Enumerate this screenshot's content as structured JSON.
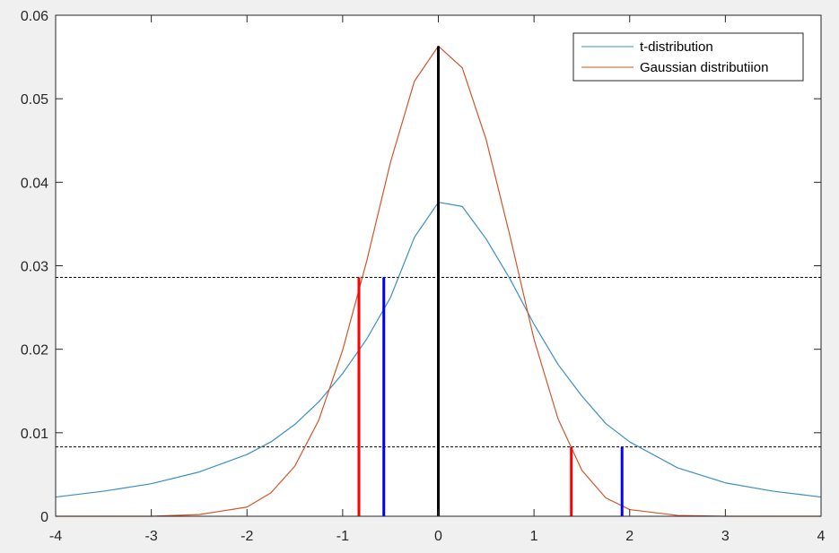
{
  "chart_data": {
    "type": "line",
    "title": "",
    "xlabel": "",
    "ylabel": "",
    "xlim": [
      -4,
      4
    ],
    "ylim": [
      0,
      0.06
    ],
    "x_ticks": [
      -4,
      -3,
      -2,
      -1,
      0,
      1,
      2,
      3,
      4
    ],
    "x_tick_labels": [
      "-4",
      "-3",
      "-2",
      "-1",
      "0",
      "1",
      "2",
      "3",
      "4"
    ],
    "y_ticks": [
      0,
      0.01,
      0.02,
      0.03,
      0.04,
      0.05,
      0.06
    ],
    "y_tick_labels": [
      "0",
      "0.01",
      "0.02",
      "0.03",
      "0.04",
      "0.05",
      "0.06"
    ],
    "grid": false,
    "legend_position": "top-right",
    "series": [
      {
        "name": "t-distribution",
        "color": "#3b8fc4",
        "x": [
          -4,
          -3.5,
          -3,
          -2.5,
          -2,
          -1.75,
          -1.5,
          -1.25,
          -1,
          -0.75,
          -0.5,
          -0.25,
          0,
          0.25,
          0.5,
          0.75,
          1,
          1.25,
          1.5,
          1.75,
          2,
          2.5,
          3,
          3.5,
          4
        ],
        "y": [
          0.0023,
          0.003,
          0.0039,
          0.0053,
          0.0074,
          0.0089,
          0.011,
          0.0137,
          0.0171,
          0.0212,
          0.0262,
          0.0334,
          0.0376,
          0.0371,
          0.0332,
          0.0284,
          0.023,
          0.0182,
          0.0144,
          0.0111,
          0.0089,
          0.0058,
          0.004,
          0.003,
          0.0023
        ]
      },
      {
        "name": "Gaussian distributiion",
        "color": "#d3542a",
        "x": [
          -4,
          -3,
          -2.5,
          -2,
          -1.75,
          -1.5,
          -1.25,
          -1,
          -0.75,
          -0.5,
          -0.25,
          0,
          0.25,
          0.5,
          0.75,
          1,
          1.25,
          1.5,
          1.75,
          2,
          2.5,
          3,
          4
        ],
        "y": [
          0.0,
          0.0,
          0.0002,
          0.0011,
          0.0028,
          0.006,
          0.0115,
          0.0199,
          0.0305,
          0.0424,
          0.0521,
          0.0563,
          0.0537,
          0.0451,
          0.0335,
          0.0212,
          0.0117,
          0.0055,
          0.0022,
          0.0008,
          0.0001,
          0.0,
          0.0
        ]
      }
    ],
    "hlines": [
      {
        "y": 0.0286,
        "color": "#000000",
        "style": "dashed"
      },
      {
        "y": 0.0083,
        "color": "#000000",
        "style": "dashed"
      }
    ],
    "vlines": [
      {
        "x": 0,
        "y_top": 0.0563,
        "color": "#000000"
      },
      {
        "x": -0.83,
        "y_top": 0.0286,
        "color": "#ff0000"
      },
      {
        "x": -0.57,
        "y_top": 0.0286,
        "color": "#0000ff"
      },
      {
        "x": 1.39,
        "y_top": 0.0083,
        "color": "#ff0000"
      },
      {
        "x": 1.92,
        "y_top": 0.0083,
        "color": "#0000ff"
      }
    ]
  }
}
